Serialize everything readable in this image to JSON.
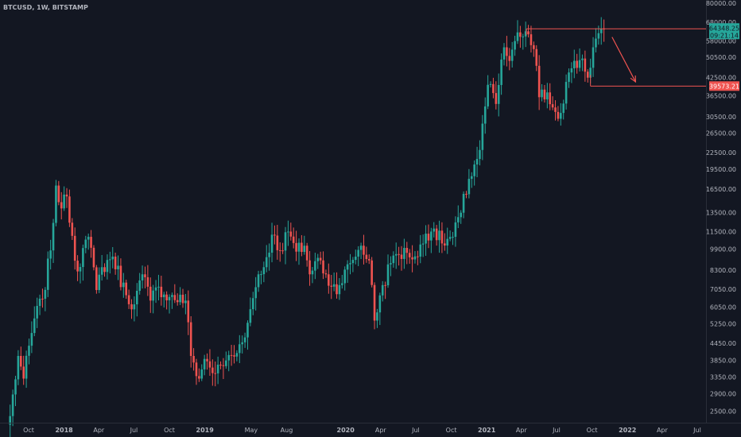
{
  "chart_data": {
    "type": "candlestick",
    "title": "BTCUSD, 1W, BITSTAMP",
    "y_scale": "log",
    "ylim": [
      2300,
      80000
    ],
    "y_ticks": [
      "80000.00",
      "68000.00",
      "58000.00",
      "50500.00",
      "42500.00",
      "36500.00",
      "30500.00",
      "26500.00",
      "22500.00",
      "19500.00",
      "16500.00",
      "13500.00",
      "11500.00",
      "9900.00",
      "8300.00",
      "7050.00",
      "6050.00",
      "5250.00",
      "4450.00",
      "3850.00",
      "3350.00",
      "2900.00",
      "2500.00"
    ],
    "x_ticks": [
      {
        "label": "Oct",
        "date": "2017-10-01"
      },
      {
        "label": "2018",
        "date": "2018-01-01"
      },
      {
        "label": "Apr",
        "date": "2018-04-01"
      },
      {
        "label": "Jul",
        "date": "2018-07-01"
      },
      {
        "label": "Oct",
        "date": "2018-10-01"
      },
      {
        "label": "2019",
        "date": "2019-01-01"
      },
      {
        "label": "May",
        "date": "2019-05-01"
      },
      {
        "label": "Aug",
        "date": "2019-08-01"
      },
      {
        "label": "2020",
        "date": "2020-01-01"
      },
      {
        "label": "Apr",
        "date": "2020-04-01"
      },
      {
        "label": "Jul",
        "date": "2020-07-01"
      },
      {
        "label": "Oct",
        "date": "2020-10-01"
      },
      {
        "label": "2021",
        "date": "2021-01-01"
      },
      {
        "label": "Apr",
        "date": "2021-04-01"
      },
      {
        "label": "Jul",
        "date": "2021-07-01"
      },
      {
        "label": "Oct",
        "date": "2021-10-01"
      },
      {
        "label": "2022",
        "date": "2022-01-01"
      },
      {
        "label": "Apr",
        "date": "2022-04-01"
      },
      {
        "label": "Jul",
        "date": "2022-07-01"
      }
    ],
    "current_price": {
      "label": "64348.25",
      "value": 64348.25,
      "countdown": "09:21:14",
      "color": "#26a69a"
    },
    "support_price": {
      "label": "39573.21",
      "value": 39573.21,
      "color": "#ef5350"
    },
    "annotations": {
      "rectangle": {
        "date_start": "2021-04-14",
        "date_end": "2022-09-01",
        "price_top": 64348.25,
        "price_bottom": 39573.21,
        "color": "#ef5350"
      },
      "rectangle_left_edge_2": {
        "date_start": "2021-09-27",
        "price_bottom": 39573.21
      },
      "arrow": {
        "date_start": "2021-11-22",
        "price_start": 60000,
        "date_end": "2022-01-22",
        "price_end": 41000,
        "color": "#ef5350"
      }
    },
    "colors": {
      "up": "#26a69a",
      "down": "#ef5350",
      "background": "#131722",
      "axis_text": "#b2b5be"
    },
    "anchors": [
      [
        "2017-08-14",
        2400
      ],
      [
        "2017-09-04",
        4000
      ],
      [
        "2017-09-18",
        3300
      ],
      [
        "2017-10-16",
        5500
      ],
      [
        "2017-11-06",
        6500
      ],
      [
        "2017-11-27",
        9800
      ],
      [
        "2017-12-11",
        17000
      ],
      [
        "2017-12-25",
        14000
      ],
      [
        "2018-01-08",
        15500
      ],
      [
        "2018-02-05",
        8200
      ],
      [
        "2018-02-19",
        10000
      ],
      [
        "2018-03-05",
        11000
      ],
      [
        "2018-03-26",
        7000
      ],
      [
        "2018-04-09",
        8500
      ],
      [
        "2018-05-07",
        9300
      ],
      [
        "2018-06-11",
        6700
      ],
      [
        "2018-07-02",
        6200
      ],
      [
        "2018-07-23",
        8000
      ],
      [
        "2018-08-13",
        6400
      ],
      [
        "2018-09-03",
        7200
      ],
      [
        "2018-10-01",
        6600
      ],
      [
        "2018-11-12",
        6400
      ],
      [
        "2018-11-26",
        4000
      ],
      [
        "2018-12-17",
        3300
      ],
      [
        "2018-12-31",
        3900
      ],
      [
        "2019-01-28",
        3450
      ],
      [
        "2019-02-25",
        3850
      ],
      [
        "2019-03-25",
        4100
      ],
      [
        "2019-04-22",
        5300
      ],
      [
        "2019-05-20",
        8000
      ],
      [
        "2019-06-03",
        8500
      ],
      [
        "2019-06-24",
        11200
      ],
      [
        "2019-07-15",
        9800
      ],
      [
        "2019-08-05",
        11500
      ],
      [
        "2019-08-26",
        9700
      ],
      [
        "2019-09-16",
        10200
      ],
      [
        "2019-09-30",
        8000
      ],
      [
        "2019-10-21",
        9200
      ],
      [
        "2019-11-11",
        8000
      ],
      [
        "2019-11-25",
        7200
      ],
      [
        "2019-12-16",
        7300
      ],
      [
        "2020-01-13",
        8800
      ],
      [
        "2020-02-10",
        10200
      ],
      [
        "2020-03-02",
        9000
      ],
      [
        "2020-03-16",
        5400
      ],
      [
        "2020-04-06",
        7300
      ],
      [
        "2020-04-27",
        8800
      ],
      [
        "2020-05-11",
        9500
      ],
      [
        "2020-06-08",
        9600
      ],
      [
        "2020-07-06",
        9300
      ],
      [
        "2020-07-27",
        11300
      ],
      [
        "2020-08-17",
        11800
      ],
      [
        "2020-09-07",
        10400
      ],
      [
        "2020-10-05",
        11000
      ],
      [
        "2020-10-26",
        13500
      ],
      [
        "2020-11-16",
        18000
      ],
      [
        "2020-12-14",
        23000
      ],
      [
        "2021-01-04",
        40000
      ],
      [
        "2021-01-25",
        34000
      ],
      [
        "2021-02-15",
        55000
      ],
      [
        "2021-03-01",
        49000
      ],
      [
        "2021-03-15",
        58000
      ],
      [
        "2021-04-12",
        63000
      ],
      [
        "2021-04-26",
        56000
      ],
      [
        "2021-05-10",
        47000
      ],
      [
        "2021-05-17",
        36000
      ],
      [
        "2021-06-07",
        37500
      ],
      [
        "2021-06-21",
        33000
      ],
      [
        "2021-07-12",
        31500
      ],
      [
        "2021-07-26",
        41000
      ],
      [
        "2021-08-09",
        46000
      ],
      [
        "2021-09-06",
        50000
      ],
      [
        "2021-09-20",
        42500
      ],
      [
        "2021-10-04",
        55000
      ],
      [
        "2021-10-18",
        62000
      ],
      [
        "2021-11-01",
        64348
      ]
    ]
  }
}
